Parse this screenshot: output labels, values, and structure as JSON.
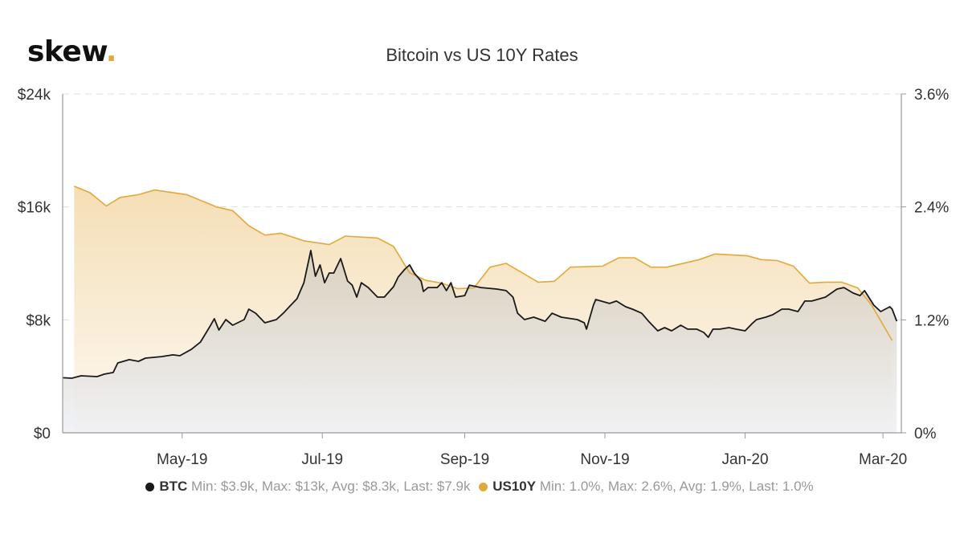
{
  "logo": {
    "text": "skew",
    "dot": ".",
    "dot_color": "#e3a83a"
  },
  "chart_data": {
    "type": "line",
    "title": "Bitcoin vs US 10Y Rates",
    "xlim": [
      "2019-03-10",
      "2020-03-09"
    ],
    "x_ticks": [
      {
        "date": "2019-05-01",
        "label": "May-19"
      },
      {
        "date": "2019-07-01",
        "label": "Jul-19"
      },
      {
        "date": "2019-09-01",
        "label": "Sep-19"
      },
      {
        "date": "2019-11-01",
        "label": "Nov-19"
      },
      {
        "date": "2020-01-01",
        "label": "Jan-20"
      },
      {
        "date": "2020-03-01",
        "label": "Mar-20"
      }
    ],
    "y_left": {
      "range": [
        0,
        24000
      ],
      "ticks": [
        0,
        8000,
        16000,
        24000
      ],
      "tick_labels": [
        "$0",
        "$8k",
        "$16k",
        "$24k"
      ]
    },
    "y_right": {
      "range": [
        0,
        3.6
      ],
      "ticks": [
        0,
        1.2,
        2.4,
        3.6
      ],
      "tick_labels": [
        "0%",
        "1.2%",
        "2.4%",
        "3.6%"
      ]
    },
    "grid": "horizontal dashed",
    "legend_placement": "bottom",
    "series": [
      {
        "name": "BTC",
        "axis": "left",
        "color": "#1a1a1a",
        "fill": "area",
        "stats": "Min: $3.9k, Max: $13k, Avg: $8.3k, Last: $7.9k",
        "points": [
          [
            "2019-03-10",
            3900
          ],
          [
            "2019-03-14",
            3870
          ],
          [
            "2019-03-18",
            4040
          ],
          [
            "2019-03-25",
            3980
          ],
          [
            "2019-03-28",
            4150
          ],
          [
            "2019-04-01",
            4270
          ],
          [
            "2019-04-03",
            4950
          ],
          [
            "2019-04-08",
            5180
          ],
          [
            "2019-04-12",
            5060
          ],
          [
            "2019-04-15",
            5290
          ],
          [
            "2019-04-22",
            5400
          ],
          [
            "2019-04-27",
            5520
          ],
          [
            "2019-04-30",
            5460
          ],
          [
            "2019-05-05",
            5910
          ],
          [
            "2019-05-09",
            6430
          ],
          [
            "2019-05-13",
            7510
          ],
          [
            "2019-05-15",
            8080
          ],
          [
            "2019-05-17",
            7280
          ],
          [
            "2019-05-20",
            8020
          ],
          [
            "2019-05-23",
            7620
          ],
          [
            "2019-05-28",
            8020
          ],
          [
            "2019-05-30",
            8760
          ],
          [
            "2019-06-02",
            8470
          ],
          [
            "2019-06-06",
            7790
          ],
          [
            "2019-06-11",
            8020
          ],
          [
            "2019-06-14",
            8470
          ],
          [
            "2019-06-17",
            8990
          ],
          [
            "2019-06-20",
            9500
          ],
          [
            "2019-06-23",
            10630
          ],
          [
            "2019-06-26",
            12910
          ],
          [
            "2019-06-28",
            11090
          ],
          [
            "2019-06-30",
            11890
          ],
          [
            "2019-07-02",
            10630
          ],
          [
            "2019-07-04",
            11320
          ],
          [
            "2019-07-06",
            11320
          ],
          [
            "2019-07-09",
            12340
          ],
          [
            "2019-07-12",
            10750
          ],
          [
            "2019-07-14",
            10460
          ],
          [
            "2019-07-16",
            9610
          ],
          [
            "2019-07-18",
            10630
          ],
          [
            "2019-07-21",
            10290
          ],
          [
            "2019-07-25",
            9610
          ],
          [
            "2019-07-28",
            9610
          ],
          [
            "2019-08-01",
            10350
          ],
          [
            "2019-08-03",
            11030
          ],
          [
            "2019-08-06",
            11600
          ],
          [
            "2019-08-08",
            11890
          ],
          [
            "2019-08-10",
            11320
          ],
          [
            "2019-08-13",
            10750
          ],
          [
            "2019-08-14",
            10010
          ],
          [
            "2019-08-16",
            10290
          ],
          [
            "2019-08-20",
            10290
          ],
          [
            "2019-08-22",
            10630
          ],
          [
            "2019-08-24",
            10070
          ],
          [
            "2019-08-26",
            10630
          ],
          [
            "2019-08-28",
            9610
          ],
          [
            "2019-09-01",
            9720
          ],
          [
            "2019-09-03",
            10460
          ],
          [
            "2019-09-08",
            10290
          ],
          [
            "2019-09-15",
            10180
          ],
          [
            "2019-09-19",
            10070
          ],
          [
            "2019-09-22",
            9610
          ],
          [
            "2019-09-24",
            8470
          ],
          [
            "2019-09-27",
            8020
          ],
          [
            "2019-10-01",
            8190
          ],
          [
            "2019-10-06",
            7900
          ],
          [
            "2019-10-09",
            8470
          ],
          [
            "2019-10-13",
            8190
          ],
          [
            "2019-10-20",
            8020
          ],
          [
            "2019-10-23",
            7790
          ],
          [
            "2019-10-24",
            7340
          ],
          [
            "2019-10-27",
            9040
          ],
          [
            "2019-10-28",
            9440
          ],
          [
            "2019-11-03",
            9160
          ],
          [
            "2019-11-06",
            9330
          ],
          [
            "2019-11-10",
            8930
          ],
          [
            "2019-11-13",
            8760
          ],
          [
            "2019-11-17",
            8470
          ],
          [
            "2019-11-20",
            7900
          ],
          [
            "2019-11-24",
            7220
          ],
          [
            "2019-11-27",
            7450
          ],
          [
            "2019-11-30",
            7220
          ],
          [
            "2019-12-04",
            7620
          ],
          [
            "2019-12-07",
            7340
          ],
          [
            "2019-12-11",
            7340
          ],
          [
            "2019-12-14",
            7110
          ],
          [
            "2019-12-16",
            6770
          ],
          [
            "2019-12-18",
            7340
          ],
          [
            "2019-12-21",
            7340
          ],
          [
            "2019-12-25",
            7450
          ],
          [
            "2019-12-28",
            7340
          ],
          [
            "2020-01-01",
            7220
          ],
          [
            "2020-01-04",
            7730
          ],
          [
            "2020-01-06",
            8020
          ],
          [
            "2020-01-10",
            8190
          ],
          [
            "2020-01-13",
            8360
          ],
          [
            "2020-01-17",
            8760
          ],
          [
            "2020-01-20",
            8760
          ],
          [
            "2020-01-24",
            8590
          ],
          [
            "2020-01-27",
            9330
          ],
          [
            "2020-01-30",
            9330
          ],
          [
            "2020-02-05",
            9610
          ],
          [
            "2020-02-10",
            10180
          ],
          [
            "2020-02-13",
            10290
          ],
          [
            "2020-02-17",
            9900
          ],
          [
            "2020-02-20",
            9720
          ],
          [
            "2020-02-22",
            10070
          ],
          [
            "2020-02-26",
            9040
          ],
          [
            "2020-02-29",
            8590
          ],
          [
            "2020-03-04",
            8930
          ],
          [
            "2020-03-05",
            8760
          ],
          [
            "2020-03-07",
            7900
          ]
        ]
      },
      {
        "name": "US10Y",
        "axis": "right",
        "color": "#e3a83a",
        "fill": "area",
        "stats": "Min: 1.0%, Max: 2.6%, Avg: 1.9%, Last: 1.0%",
        "points": [
          [
            "2019-03-15",
            2.62
          ],
          [
            "2019-03-22",
            2.55
          ],
          [
            "2019-03-29",
            2.41
          ],
          [
            "2019-04-04",
            2.5
          ],
          [
            "2019-04-12",
            2.53
          ],
          [
            "2019-04-19",
            2.58
          ],
          [
            "2019-05-03",
            2.53
          ],
          [
            "2019-05-16",
            2.4
          ],
          [
            "2019-05-23",
            2.36
          ],
          [
            "2019-05-30",
            2.2
          ],
          [
            "2019-06-06",
            2.1
          ],
          [
            "2019-06-13",
            2.12
          ],
          [
            "2019-06-23",
            2.04
          ],
          [
            "2019-07-04",
            2.0
          ],
          [
            "2019-07-11",
            2.09
          ],
          [
            "2019-07-25",
            2.07
          ],
          [
            "2019-08-01",
            1.98
          ],
          [
            "2019-08-08",
            1.7
          ],
          [
            "2019-08-15",
            1.62
          ],
          [
            "2019-08-22",
            1.59
          ],
          [
            "2019-08-29",
            1.53
          ],
          [
            "2019-09-05",
            1.54
          ],
          [
            "2019-09-12",
            1.76
          ],
          [
            "2019-09-19",
            1.8
          ],
          [
            "2019-10-03",
            1.6
          ],
          [
            "2019-10-10",
            1.61
          ],
          [
            "2019-10-17",
            1.76
          ],
          [
            "2019-10-31",
            1.77
          ],
          [
            "2019-11-07",
            1.86
          ],
          [
            "2019-11-14",
            1.86
          ],
          [
            "2019-11-21",
            1.76
          ],
          [
            "2019-11-28",
            1.76
          ],
          [
            "2019-12-12",
            1.84
          ],
          [
            "2019-12-19",
            1.9
          ],
          [
            "2020-01-02",
            1.88
          ],
          [
            "2020-01-08",
            1.84
          ],
          [
            "2020-01-15",
            1.83
          ],
          [
            "2020-01-22",
            1.77
          ],
          [
            "2020-01-29",
            1.59
          ],
          [
            "2020-02-05",
            1.6
          ],
          [
            "2020-02-12",
            1.6
          ],
          [
            "2020-02-19",
            1.54
          ],
          [
            "2020-02-25",
            1.36
          ],
          [
            "2020-03-05",
            0.98
          ]
        ]
      }
    ]
  }
}
